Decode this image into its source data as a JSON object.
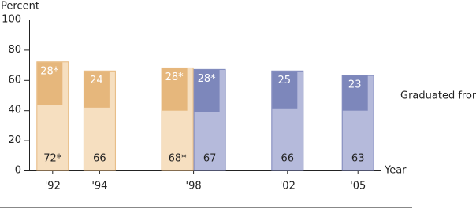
{
  "chart_data": {
    "type": "overlay-bar",
    "y_label": "Percent",
    "x_label": "Year",
    "annotation": "Graduated from high school",
    "xlim": [
      1991,
      2006
    ],
    "xticks": [
      {
        "value": 1992,
        "label": "'92"
      },
      {
        "value": 1994,
        "label": "'94"
      },
      {
        "value": 1998,
        "label": "'98"
      },
      {
        "value": 2002,
        "label": "'02"
      },
      {
        "value": 2005,
        "label": "'05"
      }
    ],
    "ylim": [
      0,
      100
    ],
    "yticks": [
      0,
      20,
      40,
      60,
      80,
      100
    ],
    "series": [
      {
        "color": "#f6dfc0",
        "segment_color": "#e6b77c",
        "x": [
          1992,
          1994,
          1998
        ],
        "values": [
          72,
          66,
          68
        ],
        "value_labels": [
          "72*",
          "66",
          "68*"
        ],
        "top_values": [
          28,
          24,
          28
        ],
        "top_value_labels": [
          "28*",
          "24",
          "28*"
        ]
      },
      {
        "color": "#b5badb",
        "segment_color": "#7d87bb",
        "x": [
          1998,
          2002,
          2005
        ],
        "values": [
          67,
          66,
          63
        ],
        "value_labels": [
          "67",
          "66",
          "63"
        ],
        "top_values": [
          28,
          25,
          23
        ],
        "top_value_labels": [
          "28*",
          "25",
          "23"
        ]
      }
    ]
  }
}
